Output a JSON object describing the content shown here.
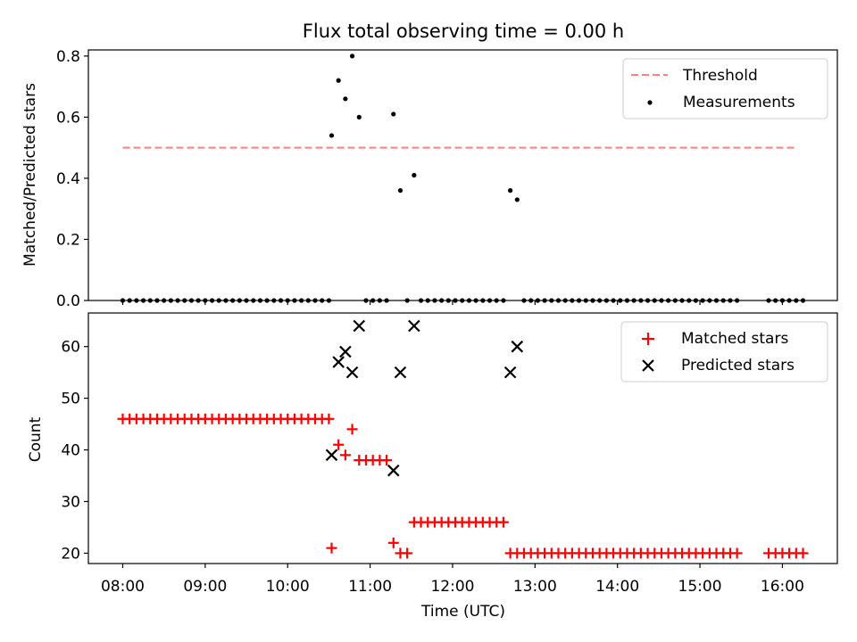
{
  "title": "Flux total observing time = 0.00 h",
  "chart_data": [
    {
      "type": "scatter",
      "panel": "top",
      "ylabel": "Matched/Predicted stars",
      "ylim": [
        0,
        0.82
      ],
      "yticks": [
        0.0,
        0.2,
        0.4,
        0.6,
        0.8
      ],
      "ytick_labels": [
        "0.0",
        "0.2",
        "0.4",
        "0.6",
        "0.8"
      ],
      "legend": "top-right",
      "threshold": {
        "name": "Threshold",
        "value": 0.5,
        "x_range": [
          "08:00",
          "16:10"
        ],
        "color": "#ff7f7f",
        "style": "dashed"
      },
      "series": [
        {
          "name": "Measurements",
          "color": "#000000",
          "points": [
            [
              "08:00",
              0
            ],
            [
              "08:05",
              0
            ],
            [
              "08:10",
              0
            ],
            [
              "08:15",
              0
            ],
            [
              "08:20",
              0
            ],
            [
              "08:25",
              0
            ],
            [
              "08:30",
              0
            ],
            [
              "08:35",
              0
            ],
            [
              "08:40",
              0
            ],
            [
              "08:45",
              0
            ],
            [
              "08:50",
              0
            ],
            [
              "08:55",
              0
            ],
            [
              "09:00",
              0
            ],
            [
              "09:05",
              0
            ],
            [
              "09:10",
              0
            ],
            [
              "09:15",
              0
            ],
            [
              "09:20",
              0
            ],
            [
              "09:25",
              0
            ],
            [
              "09:30",
              0
            ],
            [
              "09:35",
              0
            ],
            [
              "09:40",
              0
            ],
            [
              "09:45",
              0
            ],
            [
              "09:50",
              0
            ],
            [
              "09:55",
              0
            ],
            [
              "10:00",
              0
            ],
            [
              "10:05",
              0
            ],
            [
              "10:10",
              0
            ],
            [
              "10:15",
              0
            ],
            [
              "10:20",
              0
            ],
            [
              "10:25",
              0
            ],
            [
              "10:30",
              0
            ],
            [
              "10:32",
              0.54
            ],
            [
              "10:37",
              0.72
            ],
            [
              "10:42",
              0.66
            ],
            [
              "10:47",
              0.8
            ],
            [
              "10:52",
              0.6
            ],
            [
              "10:57",
              0
            ],
            [
              "11:02",
              0
            ],
            [
              "11:07",
              0
            ],
            [
              "11:12",
              0
            ],
            [
              "11:17",
              0.61
            ],
            [
              "11:22",
              0.36
            ],
            [
              "11:27",
              0
            ],
            [
              "11:32",
              0.41
            ],
            [
              "11:37",
              0
            ],
            [
              "11:42",
              0
            ],
            [
              "11:47",
              0
            ],
            [
              "11:52",
              0
            ],
            [
              "11:57",
              0
            ],
            [
              "12:02",
              0
            ],
            [
              "12:07",
              0
            ],
            [
              "12:12",
              0
            ],
            [
              "12:17",
              0
            ],
            [
              "12:22",
              0
            ],
            [
              "12:27",
              0
            ],
            [
              "12:32",
              0
            ],
            [
              "12:37",
              0
            ],
            [
              "12:42",
              0.36
            ],
            [
              "12:47",
              0.33
            ],
            [
              "12:52",
              0
            ],
            [
              "12:57",
              0
            ],
            [
              "13:02",
              0
            ],
            [
              "13:07",
              0
            ],
            [
              "13:12",
              0
            ],
            [
              "13:17",
              0
            ],
            [
              "13:22",
              0
            ],
            [
              "13:27",
              0
            ],
            [
              "13:32",
              0
            ],
            [
              "13:37",
              0
            ],
            [
              "13:42",
              0
            ],
            [
              "13:47",
              0
            ],
            [
              "13:52",
              0
            ],
            [
              "13:57",
              0
            ],
            [
              "14:02",
              0
            ],
            [
              "14:07",
              0
            ],
            [
              "14:12",
              0
            ],
            [
              "14:17",
              0
            ],
            [
              "14:22",
              0
            ],
            [
              "14:27",
              0
            ],
            [
              "14:32",
              0
            ],
            [
              "14:37",
              0
            ],
            [
              "14:42",
              0
            ],
            [
              "14:47",
              0
            ],
            [
              "14:52",
              0
            ],
            [
              "14:57",
              0
            ],
            [
              "15:02",
              0
            ],
            [
              "15:07",
              0
            ],
            [
              "15:12",
              0
            ],
            [
              "15:17",
              0
            ],
            [
              "15:22",
              0
            ],
            [
              "15:27",
              0
            ],
            [
              "15:50",
              0
            ],
            [
              "15:55",
              0
            ],
            [
              "16:00",
              0
            ],
            [
              "16:05",
              0
            ],
            [
              "16:10",
              0
            ],
            [
              "16:15",
              0
            ]
          ]
        }
      ]
    },
    {
      "type": "scatter",
      "panel": "bottom",
      "xlabel": "Time (UTC)",
      "ylabel": "Count",
      "xlim": [
        "07:35",
        "16:40"
      ],
      "xticks": [
        "08:00",
        "09:00",
        "10:00",
        "11:00",
        "12:00",
        "13:00",
        "14:00",
        "15:00",
        "16:00"
      ],
      "ylim": [
        18,
        66.5
      ],
      "yticks": [
        20,
        30,
        40,
        50,
        60
      ],
      "ytick_labels": [
        "20",
        "30",
        "40",
        "50",
        "60"
      ],
      "legend": "top-right",
      "series": [
        {
          "name": "Matched stars",
          "marker": "+",
          "color": "#ff0000",
          "points": [
            [
              "08:00",
              46
            ],
            [
              "08:05",
              46
            ],
            [
              "08:10",
              46
            ],
            [
              "08:15",
              46
            ],
            [
              "08:20",
              46
            ],
            [
              "08:25",
              46
            ],
            [
              "08:30",
              46
            ],
            [
              "08:35",
              46
            ],
            [
              "08:40",
              46
            ],
            [
              "08:45",
              46
            ],
            [
              "08:50",
              46
            ],
            [
              "08:55",
              46
            ],
            [
              "09:00",
              46
            ],
            [
              "09:05",
              46
            ],
            [
              "09:10",
              46
            ],
            [
              "09:15",
              46
            ],
            [
              "09:20",
              46
            ],
            [
              "09:25",
              46
            ],
            [
              "09:30",
              46
            ],
            [
              "09:35",
              46
            ],
            [
              "09:40",
              46
            ],
            [
              "09:45",
              46
            ],
            [
              "09:50",
              46
            ],
            [
              "09:55",
              46
            ],
            [
              "10:00",
              46
            ],
            [
              "10:05",
              46
            ],
            [
              "10:10",
              46
            ],
            [
              "10:15",
              46
            ],
            [
              "10:20",
              46
            ],
            [
              "10:25",
              46
            ],
            [
              "10:30",
              46
            ],
            [
              "10:32",
              21
            ],
            [
              "10:37",
              41
            ],
            [
              "10:42",
              39
            ],
            [
              "10:47",
              44
            ],
            [
              "10:52",
              38
            ],
            [
              "10:57",
              38
            ],
            [
              "11:02",
              38
            ],
            [
              "11:07",
              38
            ],
            [
              "11:12",
              38
            ],
            [
              "11:17",
              22
            ],
            [
              "11:22",
              20
            ],
            [
              "11:27",
              20
            ],
            [
              "11:32",
              26
            ],
            [
              "11:37",
              26
            ],
            [
              "11:42",
              26
            ],
            [
              "11:47",
              26
            ],
            [
              "11:52",
              26
            ],
            [
              "11:57",
              26
            ],
            [
              "12:02",
              26
            ],
            [
              "12:07",
              26
            ],
            [
              "12:12",
              26
            ],
            [
              "12:17",
              26
            ],
            [
              "12:22",
              26
            ],
            [
              "12:27",
              26
            ],
            [
              "12:32",
              26
            ],
            [
              "12:37",
              26
            ],
            [
              "12:42",
              20
            ],
            [
              "12:47",
              20
            ],
            [
              "12:52",
              20
            ],
            [
              "12:57",
              20
            ],
            [
              "13:02",
              20
            ],
            [
              "13:07",
              20
            ],
            [
              "13:12",
              20
            ],
            [
              "13:17",
              20
            ],
            [
              "13:22",
              20
            ],
            [
              "13:27",
              20
            ],
            [
              "13:32",
              20
            ],
            [
              "13:37",
              20
            ],
            [
              "13:42",
              20
            ],
            [
              "13:47",
              20
            ],
            [
              "13:52",
              20
            ],
            [
              "13:57",
              20
            ],
            [
              "14:02",
              20
            ],
            [
              "14:07",
              20
            ],
            [
              "14:12",
              20
            ],
            [
              "14:17",
              20
            ],
            [
              "14:22",
              20
            ],
            [
              "14:27",
              20
            ],
            [
              "14:32",
              20
            ],
            [
              "14:37",
              20
            ],
            [
              "14:42",
              20
            ],
            [
              "14:47",
              20
            ],
            [
              "14:52",
              20
            ],
            [
              "14:57",
              20
            ],
            [
              "15:02",
              20
            ],
            [
              "15:07",
              20
            ],
            [
              "15:12",
              20
            ],
            [
              "15:17",
              20
            ],
            [
              "15:22",
              20
            ],
            [
              "15:27",
              20
            ],
            [
              "15:50",
              20
            ],
            [
              "15:55",
              20
            ],
            [
              "16:00",
              20
            ],
            [
              "16:05",
              20
            ],
            [
              "16:10",
              20
            ],
            [
              "16:15",
              20
            ]
          ]
        },
        {
          "name": "Predicted stars",
          "marker": "x",
          "color": "#000000",
          "points": [
            [
              "10:32",
              39
            ],
            [
              "10:37",
              57
            ],
            [
              "10:42",
              59
            ],
            [
              "10:47",
              55
            ],
            [
              "10:52",
              64
            ],
            [
              "11:17",
              36
            ],
            [
              "11:22",
              55
            ],
            [
              "11:32",
              64
            ],
            [
              "12:42",
              55
            ],
            [
              "12:47",
              60
            ]
          ]
        }
      ]
    }
  ]
}
